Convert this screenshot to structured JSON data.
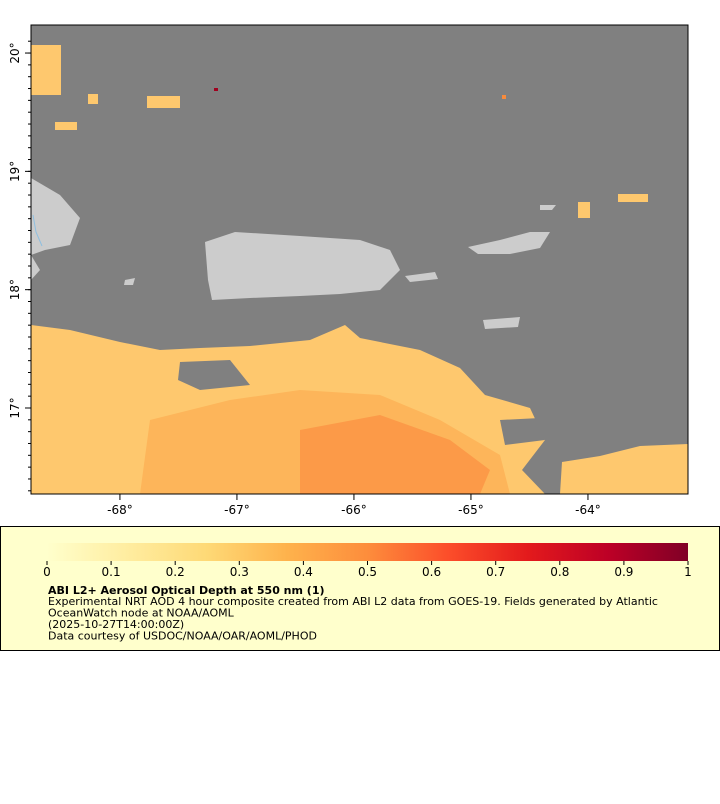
{
  "map": {
    "xlim": [
      -68.76,
      -63.145
    ],
    "ylim": [
      16.273,
      20.237
    ],
    "xticks": [
      {
        "value": -68,
        "label": "-68°"
      },
      {
        "value": -67,
        "label": "-67°"
      },
      {
        "value": -66,
        "label": "-66°"
      },
      {
        "value": -65,
        "label": "-65°"
      },
      {
        "value": -64,
        "label": "-64°"
      }
    ],
    "yticks": [
      {
        "value": 17,
        "label": "17°"
      },
      {
        "value": 18,
        "label": "18°"
      },
      {
        "value": 19,
        "label": "19°"
      },
      {
        "value": 20,
        "label": "20°"
      }
    ]
  },
  "colorbar": {
    "lim": [
      0,
      1
    ],
    "ticks": [
      0,
      0.1,
      0.2,
      0.3,
      0.4,
      0.5,
      0.6,
      0.7,
      0.8,
      0.9,
      1
    ],
    "colormap": [
      "#ffffcc",
      "#ffeda0",
      "#fed976",
      "#feb24c",
      "#fd8d3c",
      "#fc4e2a",
      "#e31a1c",
      "#bd0026",
      "#800026"
    ]
  },
  "caption": {
    "title": "ABI L2+ Aerosol Optical Depth at 550 nm (1)",
    "lines": [
      "Experimental NRT AOD 4 hour composite created from ABI L2 data from GOES-19. Fields generated by Atlantic",
      "OceanWatch node at NOAA/AOML",
      "(2025-10-27T14:00:00Z)",
      "Data courtesy of USDOC/NOAA/OAR/AOML/PHOD"
    ]
  }
}
